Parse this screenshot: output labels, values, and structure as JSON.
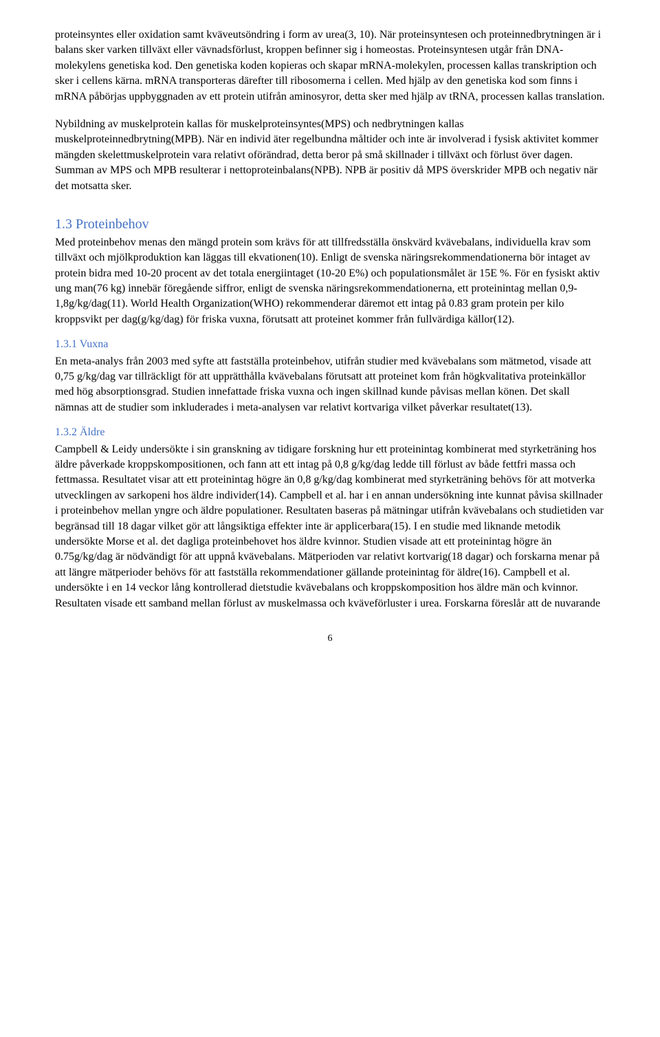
{
  "paragraphs": {
    "p1": "proteinsyntes eller oxidation samt kväveutsöndring i form av urea(3, 10). När proteinsyntesen och proteinnedbrytningen är i balans sker varken tillväxt eller vävnadsförlust, kroppen befinner sig i homeostas. Proteinsyntesen utgår från DNA-molekylens genetiska kod. Den genetiska koden kopieras och skapar mRNA-molekylen, processen kallas transkription och sker i cellens kärna. mRNA transporteras därefter till ribosomerna i cellen. Med hjälp av den genetiska kod som finns i mRNA påbörjas uppbyggnaden av ett protein utifrån aminosyror, detta sker med hjälp av tRNA, processen kallas translation.",
    "p2": "Nybildning av muskelprotein kallas för muskelproteinsyntes(MPS) och nedbrytningen kallas muskelproteinnedbrytning(MPB). När en individ äter regelbundna måltider och inte är involverad i fysisk aktivitet kommer mängden skelettmuskelprotein vara relativt oförändrad, detta beror på små skillnader i tillväxt och förlust över dagen. Summan av MPS och MPB resulterar i nettoproteinbalans(NPB). NPB är positiv då MPS överskrider MPB och negativ när det motsatta sker."
  },
  "sections": {
    "s13": {
      "heading": "1.3 Proteinbehov",
      "body": "Med proteinbehov menas den mängd protein som krävs för att tillfredsställa önskvärd kvävebalans, individuella krav som tillväxt och mjölkproduktion kan läggas till ekvationen(10). Enligt de svenska näringsrekommendationerna bör intaget av protein bidra med 10-20 procent av det totala energiintaget (10-20 E%) och populationsmålet är 15E %. För en fysiskt aktiv ung man(76 kg) innebär föregående siffror, enligt de svenska näringsrekommendationerna, ett proteinintag mellan 0,9-1,8g/kg/dag(11). World Health Organization(WHO) rekommenderar däremot ett intag på 0.83 gram protein per kilo kroppsvikt per dag(g/kg/dag) för friska vuxna, förutsatt att proteinet kommer från fullvärdiga källor(12)."
    },
    "s131": {
      "heading": "1.3.1 Vuxna",
      "body": "En meta-analys från 2003 med syfte att fastställa proteinbehov, utifrån studier med kvävebalans som mätmetod, visade att 0,75 g/kg/dag var tillräckligt för att upprätthålla kvävebalans förutsatt att proteinet kom från högkvalitativa proteinkällor med hög absorptionsgrad. Studien innefattade friska vuxna och ingen skillnad kunde påvisas mellan könen. Det skall nämnas att de studier som inkluderades i meta-analysen var relativt kortvariga vilket påverkar resultatet(13)."
    },
    "s132": {
      "heading": "1.3.2 Äldre",
      "body": "Campbell & Leidy undersökte i sin granskning av tidigare forskning hur ett proteinintag kombinerat med styrketräning hos äldre påverkade kroppskompositionen, och fann att ett intag på 0,8 g/kg/dag ledde till förlust av både fettfri massa och fettmassa. Resultatet visar att ett proteinintag högre än 0,8 g/kg/dag kombinerat med styrketräning behövs för att motverka utvecklingen av sarkopeni hos äldre individer(14). Campbell et al. har i en annan undersökning inte kunnat påvisa skillnader i proteinbehov mellan yngre och äldre populationer. Resultaten baseras på mätningar utifrån kvävebalans och studietiden var begränsad till 18 dagar vilket gör att långsiktiga effekter inte är applicerbara(15). I en studie med liknande metodik undersökte Morse et al. det dagliga proteinbehovet hos äldre kvinnor. Studien visade att ett proteinintag högre än 0.75g/kg/dag är nödvändigt för att uppnå kvävebalans. Mätperioden var relativt kortvarig(18 dagar) och forskarna menar på att längre mätperioder behövs för att fastställa rekommendationer gällande proteinintag för äldre(16). Campbell et al. undersökte i en 14 veckor lång kontrollerad dietstudie kvävebalans och kroppskomposition hos äldre män och kvinnor. Resultaten visade ett samband mellan förlust av muskelmassa och kväveförluster i urea. Forskarna föreslår att de nuvarande"
    }
  },
  "pageNumber": "6",
  "colors": {
    "heading": "#4472c4",
    "text": "#000000",
    "background": "#ffffff"
  }
}
